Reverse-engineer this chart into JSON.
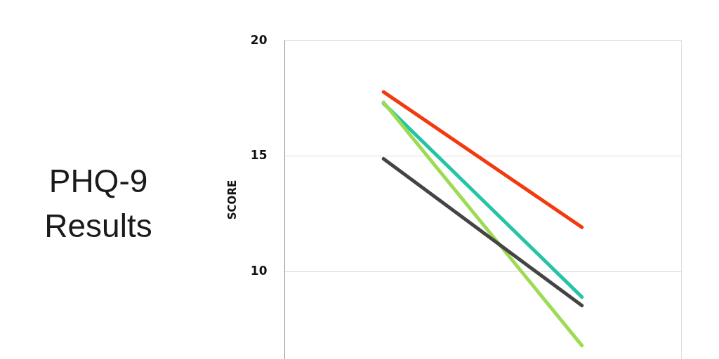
{
  "chart_data": {
    "type": "line",
    "title": "PHQ-9 Results",
    "ylabel": "SCORE",
    "categories": [
      null,
      null
    ],
    "series": [
      {
        "color": "#f23a0e",
        "values": [
          17.75,
          11.9
        ]
      },
      {
        "color": "#26c4a6",
        "values": [
          17.26,
          8.88
        ]
      },
      {
        "color": "#9ddb52",
        "values": [
          17.3,
          6.78
        ]
      },
      {
        "color": "#444444",
        "values": [
          14.86,
          8.51
        ]
      }
    ],
    "ylim": [
      6.2,
      20
    ],
    "yticks": [
      10,
      15,
      20
    ],
    "grid": "y",
    "legend": false,
    "tick_labels": "y",
    "marker": "none",
    "line_style": "solid"
  }
}
